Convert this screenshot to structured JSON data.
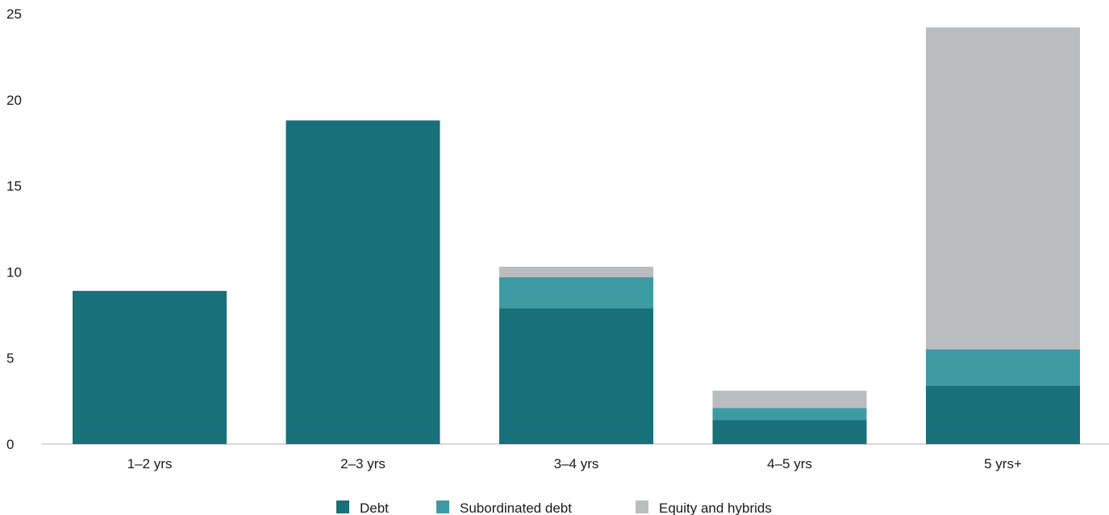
{
  "chart_data": {
    "type": "bar",
    "stacked": true,
    "categories": [
      "1–2 yrs",
      "2–3 yrs",
      "3–4 yrs",
      "4–5 yrs",
      "5 yrs+"
    ],
    "series": [
      {
        "name": "Debt",
        "color": "#17707a",
        "values": [
          8.9,
          18.8,
          7.9,
          1.4,
          3.4
        ]
      },
      {
        "name": "Subordinated debt",
        "color": "#3d9ba4",
        "values": [
          0,
          0,
          1.8,
          0.7,
          2.1
        ]
      },
      {
        "name": "Equity and hybrids",
        "color": "#bbbcbf",
        "values": [
          0,
          0,
          0.6,
          1.0,
          18.7
        ]
      }
    ],
    "ylim": [
      0,
      25
    ],
    "yticks": [
      "0",
      "5",
      "10",
      "15",
      "20",
      "25"
    ],
    "grid": false,
    "legend_position": "bottom-center"
  }
}
